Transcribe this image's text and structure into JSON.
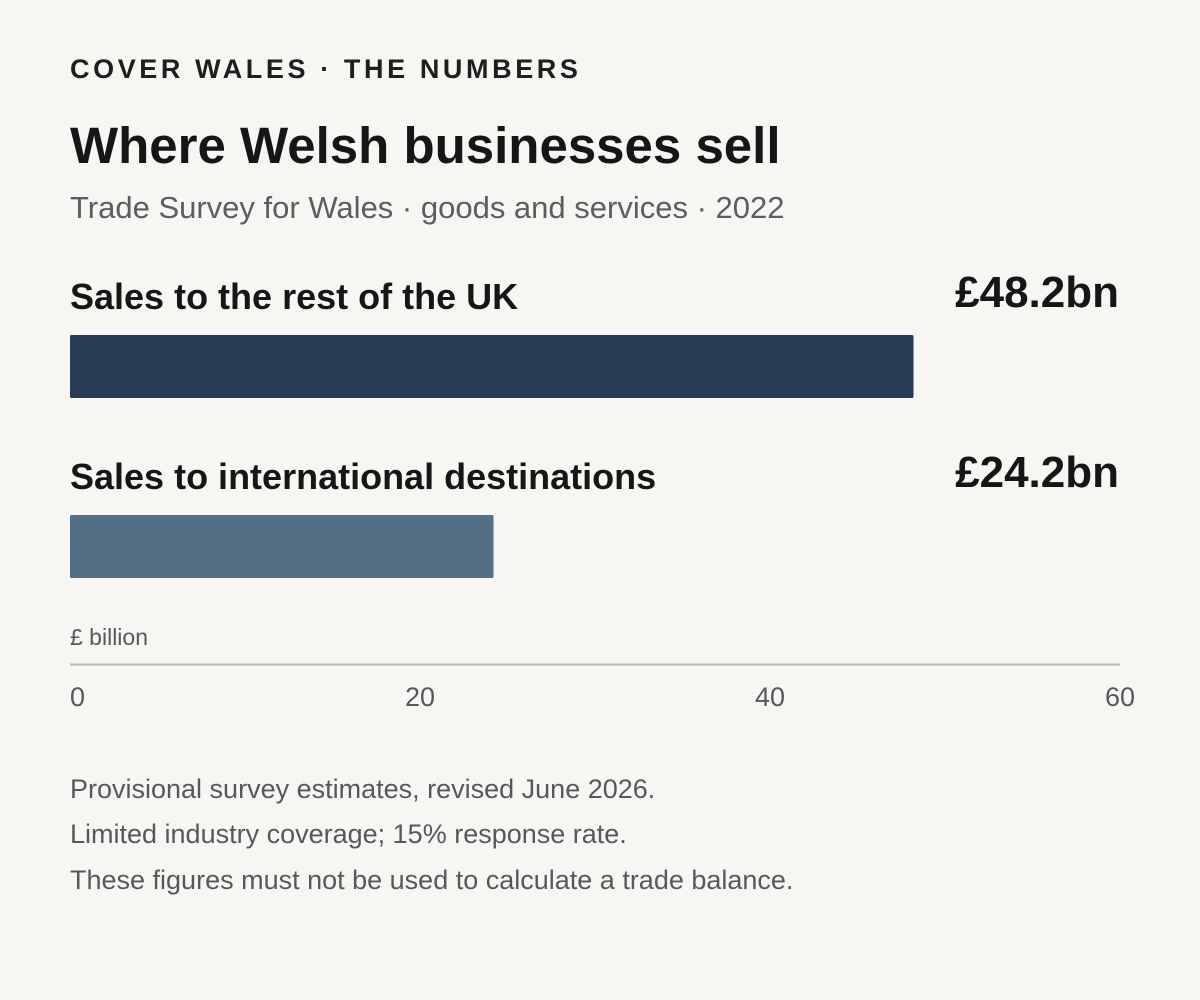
{
  "header": {
    "kicker": "COVER WALES · THE NUMBERS",
    "title": "Where Welsh businesses sell",
    "subtitle": "Trade Survey for Wales · goods and services · 2022"
  },
  "chart_data": {
    "type": "bar",
    "orientation": "horizontal",
    "categories": [
      "Sales to the rest of the UK",
      "Sales to international destinations"
    ],
    "values": [
      48.2,
      24.2
    ],
    "value_labels": [
      "£48.2bn",
      "£24.2bn"
    ],
    "colors": [
      "#283d55",
      "#546e85"
    ],
    "xlabel": "£ billion",
    "xlim": [
      0,
      60
    ],
    "xticks": [
      0,
      20,
      40,
      60
    ],
    "grid": false
  },
  "footnotes": [
    "Provisional survey estimates, revised June 2026.",
    "Limited industry coverage; 15% response rate.",
    "These figures must not be used to calculate a trade balance."
  ]
}
